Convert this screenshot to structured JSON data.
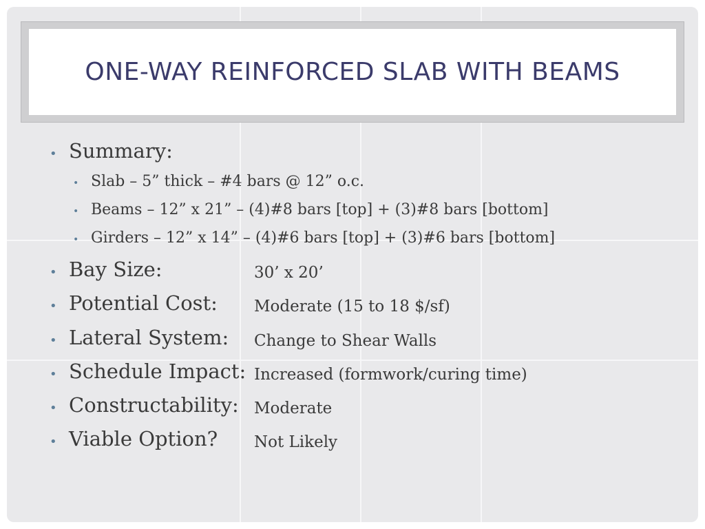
{
  "title": "One-Way Reinforced Slab with Beams",
  "summary": {
    "label": "Summary:",
    "items": [
      "Slab – 5” thick – #4 bars @ 12” o.c.",
      "Beams – 12” x 21” – (4)#8 bars [top] + (3)#8 bars [bottom]",
      "Girders – 12” x 14” – (4)#6 bars [top] + (3)#6 bars [bottom]"
    ]
  },
  "properties": [
    {
      "label": "Bay Size:",
      "value": "30’ x 20’"
    },
    {
      "label": "Potential Cost:",
      "value": "Moderate (15 to 18 $/sf)"
    },
    {
      "label": "Lateral System:",
      "value": "Change to Shear Walls"
    },
    {
      "label": "Schedule Impact:",
      "value": "Increased (formwork/curing time)"
    },
    {
      "label": "Constructability:",
      "value": "Moderate"
    },
    {
      "label": "Viable Option?",
      "value": "Not Likely"
    }
  ],
  "colors": {
    "title": "#3b3b6b",
    "bullet": "#5e7f99",
    "text": "#3a3a3a",
    "background": "#e9e9eb"
  }
}
